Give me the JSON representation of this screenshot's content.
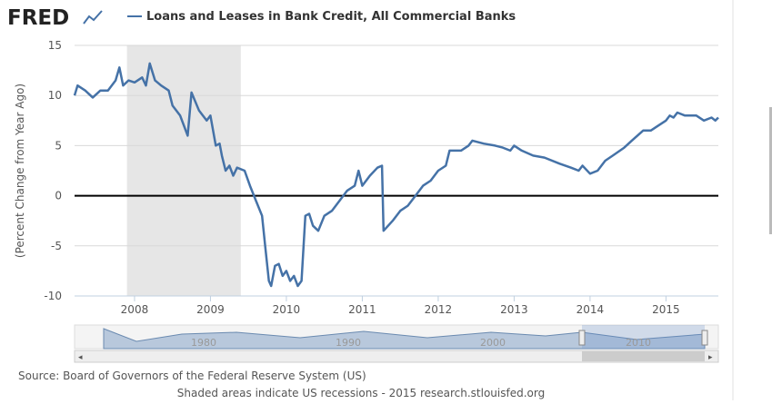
{
  "logo": "FRED",
  "source": "Source: Board of Governors of the Federal Reserve System (US)",
  "note": "Shaded areas indicate US recessions - 2015 research.stlouisfed.org",
  "navigator_labels": [
    "1980",
    "1990",
    "2000",
    "2010"
  ],
  "chart_data": {
    "type": "line",
    "ylabel": "(Percent Change from Year Ago)",
    "xlim": [
      2007.21,
      2015.69
    ],
    "ylim": [
      -10,
      15
    ],
    "xticks": [
      2008,
      2009,
      2010,
      2011,
      2012,
      2013,
      2014,
      2015
    ],
    "yticks": [
      -10,
      -5,
      0,
      5,
      10,
      15
    ],
    "grid": true,
    "recessions": [
      [
        2007.9,
        2009.4
      ]
    ],
    "x": [
      2007.21,
      2007.25,
      2007.35,
      2007.45,
      2007.55,
      2007.65,
      2007.75,
      2007.8,
      2007.85,
      2007.92,
      2008.0,
      2008.1,
      2008.15,
      2008.2,
      2008.27,
      2008.35,
      2008.45,
      2008.5,
      2008.6,
      2008.7,
      2008.75,
      2008.85,
      2008.95,
      2009.0,
      2009.07,
      2009.12,
      2009.15,
      2009.2,
      2009.25,
      2009.3,
      2009.35,
      2009.45,
      2009.52,
      2009.6,
      2009.68,
      2009.72,
      2009.77,
      2009.8,
      2009.85,
      2009.9,
      2009.95,
      2010.0,
      2010.05,
      2010.1,
      2010.15,
      2010.2,
      2010.25,
      2010.3,
      2010.35,
      2010.42,
      2010.5,
      2010.6,
      2010.7,
      2010.8,
      2010.9,
      2010.95,
      2011.0,
      2011.1,
      2011.2,
      2011.26,
      2011.28,
      2011.4,
      2011.5,
      2011.6,
      2011.7,
      2011.8,
      2011.9,
      2012.0,
      2012.1,
      2012.15,
      2012.3,
      2012.4,
      2012.45,
      2012.6,
      2012.75,
      2012.85,
      2012.95,
      2013.0,
      2013.1,
      2013.25,
      2013.4,
      2013.6,
      2013.75,
      2013.85,
      2013.9,
      2014.0,
      2014.1,
      2014.2,
      2014.3,
      2014.45,
      2014.55,
      2014.7,
      2014.8,
      2014.9,
      2015.0,
      2015.05,
      2015.1,
      2015.15,
      2015.25,
      2015.4,
      2015.5,
      2015.6,
      2015.65,
      2015.69
    ],
    "series": [
      {
        "name": "Loans and Leases in Bank Credit, All Commercial Banks",
        "color": "#4572a7",
        "values": [
          10,
          11,
          10.5,
          9.8,
          10.5,
          10.5,
          11.5,
          12.8,
          11,
          11.5,
          11.3,
          11.8,
          11,
          13.2,
          11.5,
          11,
          10.5,
          9,
          8,
          6,
          10.3,
          8.5,
          7.5,
          8,
          5,
          5.2,
          4,
          2.5,
          3,
          2,
          2.8,
          2.5,
          1,
          -0.5,
          -2,
          -5,
          -8.5,
          -9,
          -7,
          -6.8,
          -8,
          -7.5,
          -8.5,
          -8,
          -9,
          -8.5,
          -2,
          -1.8,
          -3,
          -3.5,
          -2,
          -1.5,
          -0.5,
          0.5,
          1,
          2.5,
          1,
          2,
          2.8,
          3,
          -3.5,
          -2.5,
          -1.5,
          -1,
          0,
          1,
          1.5,
          2.5,
          3,
          4.5,
          4.5,
          5,
          5.5,
          5.2,
          5,
          4.8,
          4.5,
          5,
          4.5,
          4,
          3.8,
          3.2,
          2.8,
          2.5,
          3,
          2.2,
          2.5,
          3.5,
          4,
          4.8,
          5.5,
          6.5,
          6.5,
          7,
          7.5,
          8,
          7.8,
          8.3,
          8,
          8,
          7.5,
          7.8,
          7.5,
          7.8
        ]
      }
    ]
  }
}
